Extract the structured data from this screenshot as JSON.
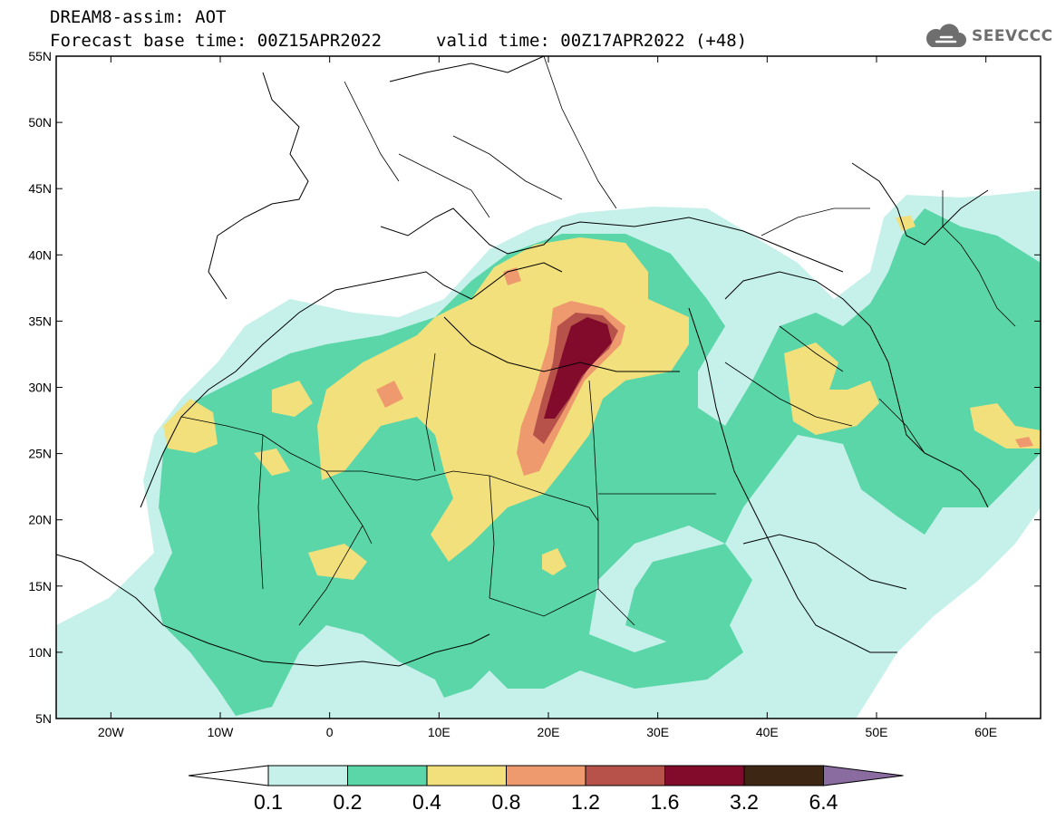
{
  "header": {
    "title": "DREAM8-assim: AOT",
    "base_time_label": "Forecast base time: 00Z15APR2022",
    "valid_time_label": "valid time: 00Z17APR2022 (+48)"
  },
  "logo": {
    "text": "SEEVCCC",
    "icon": "cloud-icon",
    "color": "#6e6e6e"
  },
  "map": {
    "variable": "AOT",
    "lat_range": [
      5,
      55
    ],
    "lon_range": [
      -25,
      65
    ],
    "lat_ticks": [
      "55N",
      "50N",
      "45N",
      "40N",
      "35N",
      "30N",
      "25N",
      "20N",
      "15N",
      "10N",
      "5N"
    ],
    "lon_ticks": [
      "20W",
      "10W",
      "0",
      "10E",
      "20E",
      "30E",
      "40E",
      "50E",
      "60E"
    ]
  },
  "colorbar": {
    "levels": [
      "0.1",
      "0.2",
      "0.4",
      "0.8",
      "1.2",
      "1.6",
      "3.2",
      "6.4"
    ],
    "colors": [
      "#ffffff",
      "#c6f1ea",
      "#5ad6a8",
      "#f2e07c",
      "#ee9a6e",
      "#b6524a",
      "#820b2c",
      "#3e2614",
      "#8a6ca0"
    ]
  }
}
